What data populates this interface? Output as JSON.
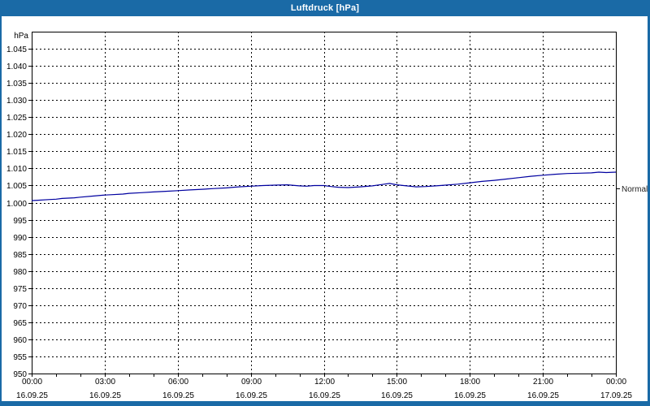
{
  "window": {
    "title": "Luftdruck [hPa]"
  },
  "colors": {
    "frame": "#1a6aa6",
    "title_text": "#ffffff",
    "panel": "#ffffff",
    "axis": "#000000",
    "grid": "#000000",
    "label_text": "#000000",
    "normal_text": "#222222",
    "line": "#0000a0"
  },
  "chart_data": {
    "type": "line",
    "title": "Luftdruck [hPa]",
    "unit_label": "hPa",
    "grid": "dashed",
    "ylim": [
      950,
      1050
    ],
    "xlim_hours": [
      0,
      24
    ],
    "y_ticks": [
      {
        "value": 1045,
        "label": "1.045"
      },
      {
        "value": 1040,
        "label": "1.040"
      },
      {
        "value": 1035,
        "label": "1.035"
      },
      {
        "value": 1030,
        "label": "1.030"
      },
      {
        "value": 1025,
        "label": "1.025"
      },
      {
        "value": 1020,
        "label": "1.020"
      },
      {
        "value": 1015,
        "label": "1.015"
      },
      {
        "value": 1010,
        "label": "1.010"
      },
      {
        "value": 1005,
        "label": "1.005"
      },
      {
        "value": 1000,
        "label": "1.000"
      },
      {
        "value": 995,
        "label": "995"
      },
      {
        "value": 990,
        "label": "990"
      },
      {
        "value": 985,
        "label": "985"
      },
      {
        "value": 980,
        "label": "980"
      },
      {
        "value": 975,
        "label": "975"
      },
      {
        "value": 970,
        "label": "970"
      },
      {
        "value": 965,
        "label": "965"
      },
      {
        "value": 960,
        "label": "960"
      },
      {
        "value": 955,
        "label": "955"
      },
      {
        "value": 950,
        "label": "950"
      }
    ],
    "x_ticks": [
      {
        "hour": 0,
        "time": "00:00",
        "date": "16.09.25"
      },
      {
        "hour": 3,
        "time": "03:00",
        "date": "16.09.25"
      },
      {
        "hour": 6,
        "time": "06:00",
        "date": "16.09.25"
      },
      {
        "hour": 9,
        "time": "09:00",
        "date": "16.09.25"
      },
      {
        "hour": 12,
        "time": "12:00",
        "date": "16.09.25"
      },
      {
        "hour": 15,
        "time": "15:00",
        "date": "16.09.25"
      },
      {
        "hour": 18,
        "time": "18:00",
        "date": "16.09.25"
      },
      {
        "hour": 21,
        "time": "21:00",
        "date": "16.09.25"
      },
      {
        "hour": 24,
        "time": "00:00",
        "date": "17.09.25"
      }
    ],
    "minor_tick_every_hours": 1,
    "normal_marker": {
      "label": "Normal",
      "value": 1004.2
    },
    "series": [
      {
        "name": "Luftdruck",
        "points": [
          [
            0.0,
            1000.6
          ],
          [
            0.25,
            1000.7
          ],
          [
            0.75,
            1000.9
          ],
          [
            1.0,
            1001.0
          ],
          [
            1.25,
            1001.2
          ],
          [
            1.75,
            1001.4
          ],
          [
            2.0,
            1001.6
          ],
          [
            2.5,
            1001.9
          ],
          [
            3.0,
            1002.2
          ],
          [
            3.25,
            1002.3
          ],
          [
            3.75,
            1002.5
          ],
          [
            4.0,
            1002.7
          ],
          [
            4.5,
            1002.9
          ],
          [
            5.0,
            1003.1
          ],
          [
            5.5,
            1003.3
          ],
          [
            6.0,
            1003.5
          ],
          [
            6.5,
            1003.7
          ],
          [
            7.0,
            1003.9
          ],
          [
            7.5,
            1004.1
          ],
          [
            8.0,
            1004.3
          ],
          [
            8.5,
            1004.6
          ],
          [
            9.0,
            1004.8
          ],
          [
            9.5,
            1005.0
          ],
          [
            10.0,
            1005.1
          ],
          [
            10.5,
            1005.2
          ],
          [
            11.0,
            1004.9
          ],
          [
            11.3,
            1004.8
          ],
          [
            11.6,
            1005.0
          ],
          [
            12.0,
            1005.0
          ],
          [
            12.3,
            1004.7
          ],
          [
            12.6,
            1004.5
          ],
          [
            13.0,
            1004.4
          ],
          [
            13.5,
            1004.6
          ],
          [
            14.0,
            1004.9
          ],
          [
            14.4,
            1005.3
          ],
          [
            14.7,
            1005.6
          ],
          [
            15.0,
            1005.2
          ],
          [
            15.4,
            1004.9
          ],
          [
            15.8,
            1004.6
          ],
          [
            16.2,
            1004.7
          ],
          [
            16.6,
            1004.9
          ],
          [
            17.0,
            1005.1
          ],
          [
            17.5,
            1005.4
          ],
          [
            18.0,
            1005.8
          ],
          [
            18.5,
            1006.2
          ],
          [
            19.0,
            1006.5
          ],
          [
            19.5,
            1006.9
          ],
          [
            20.0,
            1007.3
          ],
          [
            20.5,
            1007.7
          ],
          [
            21.0,
            1008.0
          ],
          [
            21.5,
            1008.3
          ],
          [
            22.0,
            1008.5
          ],
          [
            22.5,
            1008.6
          ],
          [
            23.0,
            1008.7
          ],
          [
            23.3,
            1008.9
          ],
          [
            23.6,
            1008.8
          ],
          [
            24.0,
            1008.9
          ]
        ]
      }
    ]
  }
}
